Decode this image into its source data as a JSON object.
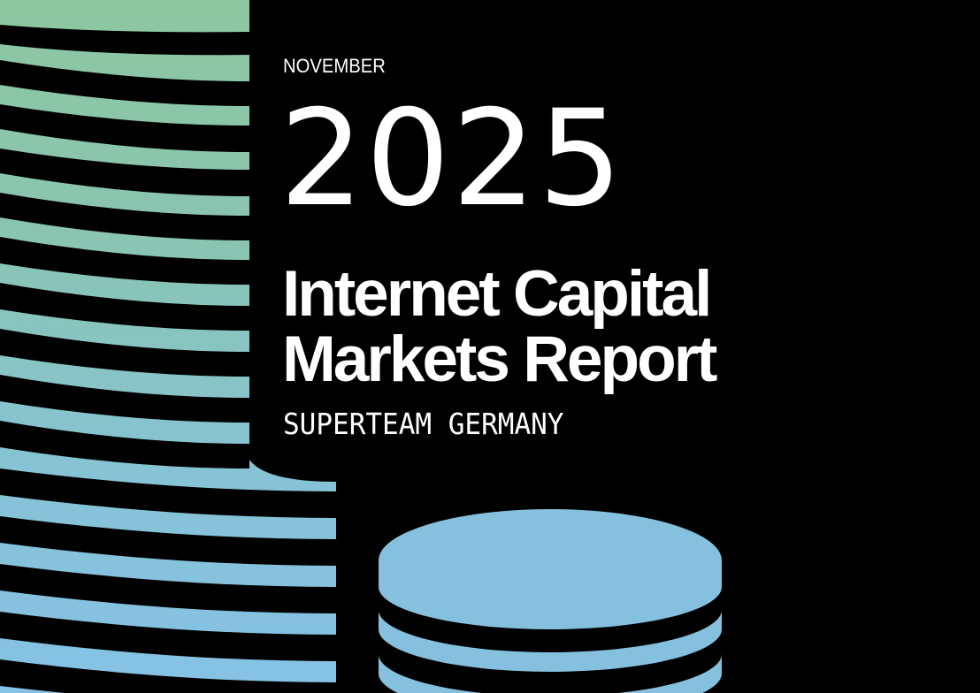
{
  "cover": {
    "month": "NOVEMBER",
    "year": "2025",
    "title_line1": "Internet Capital",
    "title_line2": "Markets Report",
    "organization": "SUPERTEAM GERMANY"
  },
  "colors": {
    "background": "#000000",
    "text": "#ffffff",
    "coin_gradient_top": "#8cc7a0",
    "coin_gradient_bottom": "#86c3e6",
    "coin_small": "#85c1df"
  }
}
